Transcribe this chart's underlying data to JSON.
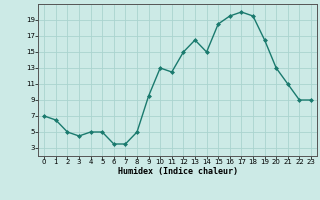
{
  "x": [
    0,
    1,
    2,
    3,
    4,
    5,
    6,
    7,
    8,
    9,
    10,
    11,
    12,
    13,
    14,
    15,
    16,
    17,
    18,
    19,
    20,
    21,
    22,
    23
  ],
  "y": [
    7,
    6.5,
    5,
    4.5,
    5,
    5,
    3.5,
    3.5,
    5,
    9.5,
    13,
    12.5,
    15,
    16.5,
    15,
    18.5,
    19.5,
    20,
    19.5,
    16.5,
    13,
    11,
    9,
    9
  ],
  "line_color": "#1a7a6e",
  "marker_color": "#1a7a6e",
  "bg_color": "#cceae6",
  "grid_color": "#aad4cf",
  "xlabel": "Humidex (Indice chaleur)",
  "ylim": [
    2,
    21
  ],
  "xlim": [
    -0.5,
    23.5
  ],
  "yticks": [
    3,
    5,
    7,
    9,
    11,
    13,
    15,
    17,
    19
  ],
  "xticks": [
    0,
    1,
    2,
    3,
    4,
    5,
    6,
    7,
    8,
    9,
    10,
    11,
    12,
    13,
    14,
    15,
    16,
    17,
    18,
    19,
    20,
    21,
    22,
    23
  ]
}
